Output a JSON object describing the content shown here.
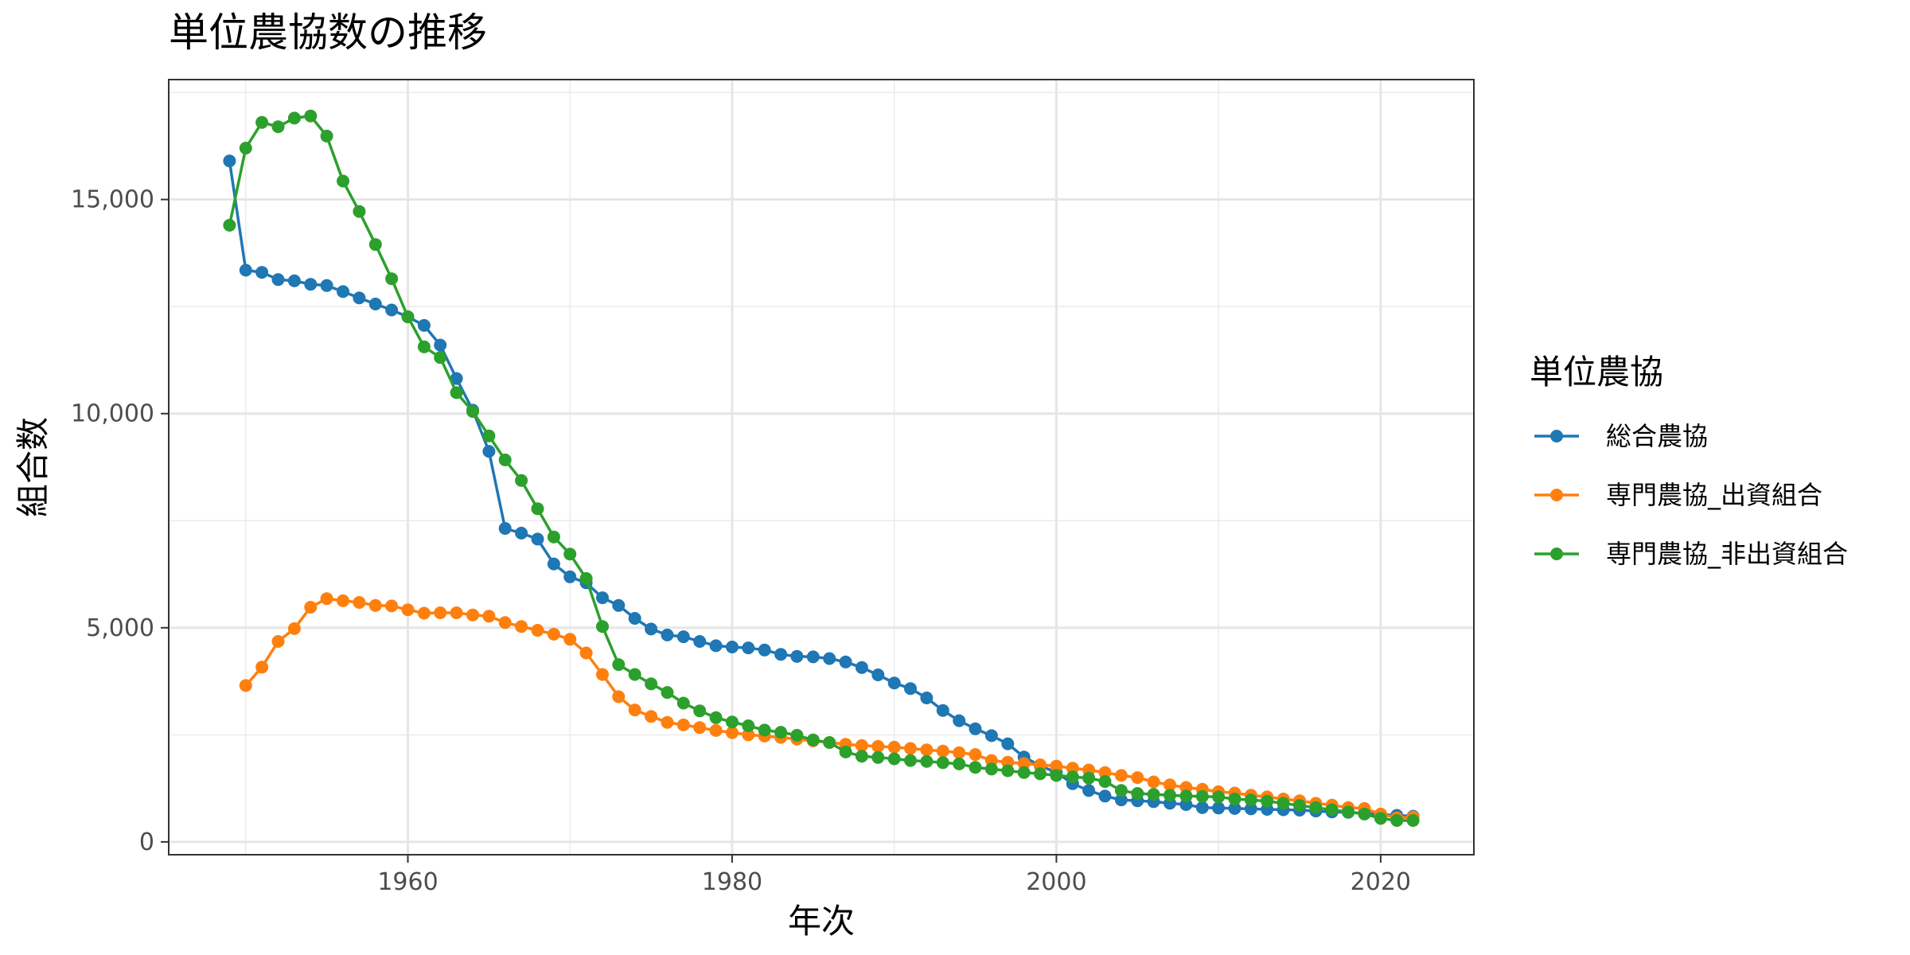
{
  "chart_data": {
    "type": "line",
    "title": "単位農協数の推移",
    "xlabel": "年次",
    "ylabel": "組合数",
    "xlim": [
      1945.25,
      2025.75
    ],
    "ylim": [
      -300,
      17800
    ],
    "x_ticks": [
      1960,
      1980,
      2000,
      2020
    ],
    "x_tick_labels": [
      "1960",
      "1980",
      "2000",
      "2020"
    ],
    "y_ticks": [
      0,
      5000,
      10000,
      15000
    ],
    "y_tick_labels": [
      "0",
      "5,000",
      "10,000",
      "15,000"
    ],
    "grid": true,
    "legend": {
      "title": "単位農協",
      "position": "right"
    },
    "series": [
      {
        "name": "総合農協",
        "color": "#1f77b4",
        "x": [
          1949,
          1950,
          1951,
          1952,
          1953,
          1954,
          1955,
          1956,
          1957,
          1958,
          1959,
          1960,
          1961,
          1962,
          1963,
          1964,
          1965,
          1966,
          1967,
          1968,
          1969,
          1970,
          1971,
          1972,
          1973,
          1974,
          1975,
          1976,
          1977,
          1978,
          1979,
          1980,
          1981,
          1982,
          1983,
          1984,
          1985,
          1986,
          1987,
          1988,
          1989,
          1990,
          1991,
          1992,
          1993,
          1994,
          1995,
          1996,
          1997,
          1998,
          1999,
          2000,
          2001,
          2002,
          2003,
          2004,
          2005,
          2006,
          2007,
          2008,
          2009,
          2010,
          2011,
          2012,
          2013,
          2014,
          2015,
          2016,
          2017,
          2018,
          2019,
          2020,
          2021,
          2022
        ],
        "y": [
          15900,
          13350,
          13300,
          13130,
          13100,
          13020,
          12990,
          12850,
          12700,
          12560,
          12420,
          12260,
          12060,
          11600,
          10820,
          10080,
          9120,
          7320,
          7210,
          7070,
          6490,
          6190,
          6050,
          5700,
          5520,
          5220,
          4970,
          4830,
          4790,
          4680,
          4580,
          4550,
          4530,
          4480,
          4380,
          4330,
          4320,
          4280,
          4200,
          4070,
          3900,
          3710,
          3580,
          3360,
          3070,
          2830,
          2640,
          2480,
          2290,
          1980,
          1780,
          1620,
          1360,
          1200,
          1070,
          980,
          960,
          940,
          900,
          870,
          800,
          790,
          780,
          770,
          760,
          750,
          740,
          720,
          700,
          690,
          670,
          640,
          620,
          600
        ]
      },
      {
        "name": "専門農協_出資組合",
        "color": "#ff7f0e",
        "x": [
          1950,
          1951,
          1952,
          1953,
          1954,
          1955,
          1956,
          1957,
          1958,
          1959,
          1960,
          1961,
          1962,
          1963,
          1964,
          1965,
          1966,
          1967,
          1968,
          1969,
          1970,
          1971,
          1972,
          1973,
          1974,
          1975,
          1976,
          1977,
          1978,
          1979,
          1980,
          1981,
          1982,
          1983,
          1984,
          1985,
          1986,
          1987,
          1988,
          1989,
          1990,
          1991,
          1992,
          1993,
          1994,
          1995,
          1996,
          1997,
          1998,
          1999,
          2000,
          2001,
          2002,
          2003,
          2004,
          2005,
          2006,
          2007,
          2008,
          2009,
          2010,
          2011,
          2012,
          2013,
          2014,
          2015,
          2016,
          2017,
          2018,
          2019,
          2020,
          2021,
          2022
        ],
        "y": [
          3650,
          4080,
          4680,
          4980,
          5480,
          5680,
          5630,
          5590,
          5520,
          5510,
          5420,
          5340,
          5350,
          5350,
          5300,
          5270,
          5120,
          5030,
          4940,
          4850,
          4730,
          4410,
          3910,
          3390,
          3080,
          2930,
          2790,
          2730,
          2670,
          2600,
          2550,
          2500,
          2470,
          2440,
          2400,
          2360,
          2320,
          2280,
          2250,
          2230,
          2210,
          2180,
          2150,
          2120,
          2080,
          2040,
          1900,
          1860,
          1830,
          1800,
          1770,
          1720,
          1680,
          1620,
          1550,
          1500,
          1400,
          1330,
          1270,
          1230,
          1170,
          1140,
          1090,
          1050,
          1000,
          960,
          900,
          860,
          800,
          780,
          650,
          560,
          580
        ]
      },
      {
        "name": "専門農協_非出資組合",
        "color": "#2ca02c",
        "x": [
          1949,
          1950,
          1951,
          1952,
          1953,
          1954,
          1955,
          1956,
          1957,
          1958,
          1959,
          1960,
          1961,
          1962,
          1963,
          1964,
          1965,
          1966,
          1967,
          1968,
          1969,
          1970,
          1971,
          1972,
          1973,
          1974,
          1975,
          1976,
          1977,
          1978,
          1979,
          1980,
          1981,
          1982,
          1983,
          1984,
          1985,
          1986,
          1987,
          1988,
          1989,
          1990,
          1991,
          1992,
          1993,
          1994,
          1995,
          1996,
          1997,
          1998,
          1999,
          2000,
          2001,
          2002,
          2003,
          2004,
          2005,
          2006,
          2007,
          2008,
          2009,
          2010,
          2011,
          2012,
          2013,
          2014,
          2015,
          2016,
          2017,
          2018,
          2019,
          2020,
          2021,
          2022
        ],
        "y": [
          14400,
          16200,
          16800,
          16700,
          16900,
          16950,
          16480,
          15430,
          14720,
          13950,
          13150,
          12260,
          11560,
          11310,
          10490,
          10050,
          9480,
          8920,
          8440,
          7780,
          7120,
          6720,
          6150,
          5030,
          4140,
          3910,
          3690,
          3490,
          3240,
          3060,
          2900,
          2800,
          2710,
          2610,
          2560,
          2490,
          2380,
          2320,
          2100,
          2000,
          1970,
          1940,
          1900,
          1880,
          1850,
          1820,
          1740,
          1700,
          1660,
          1620,
          1590,
          1550,
          1520,
          1490,
          1410,
          1200,
          1130,
          1110,
          1090,
          1070,
          1060,
          1050,
          1000,
          980,
          950,
          900,
          850,
          800,
          750,
          700,
          650,
          550,
          500,
          500
        ]
      }
    ]
  }
}
